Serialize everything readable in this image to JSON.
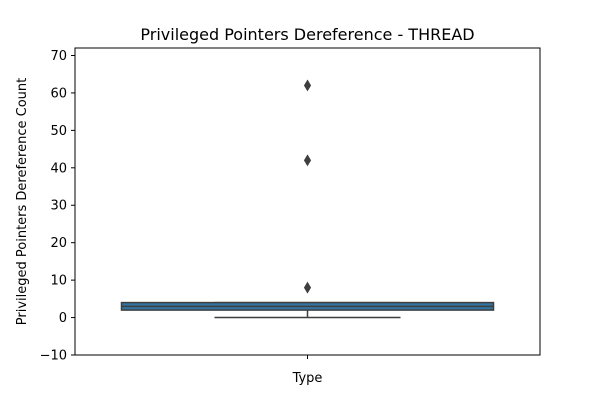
{
  "chart_data": {
    "type": "box",
    "title": "Privileged Pointers Dereference - THREAD",
    "xlabel": "Type",
    "ylabel": "Privileged Pointers Dereference Count",
    "ylim": [
      -10,
      72
    ],
    "yticks": [
      -10,
      0,
      10,
      20,
      30,
      40,
      50,
      60,
      70
    ],
    "grid": false,
    "categories": [
      ""
    ],
    "box": {
      "whisker_low": 0,
      "q1": 2,
      "median": 3,
      "q3": 4,
      "whisker_high": 4,
      "outliers": [
        8,
        42,
        62
      ]
    },
    "colors": {
      "box_fill": "#3274a1",
      "box_edge": "#3f3f3f"
    }
  }
}
